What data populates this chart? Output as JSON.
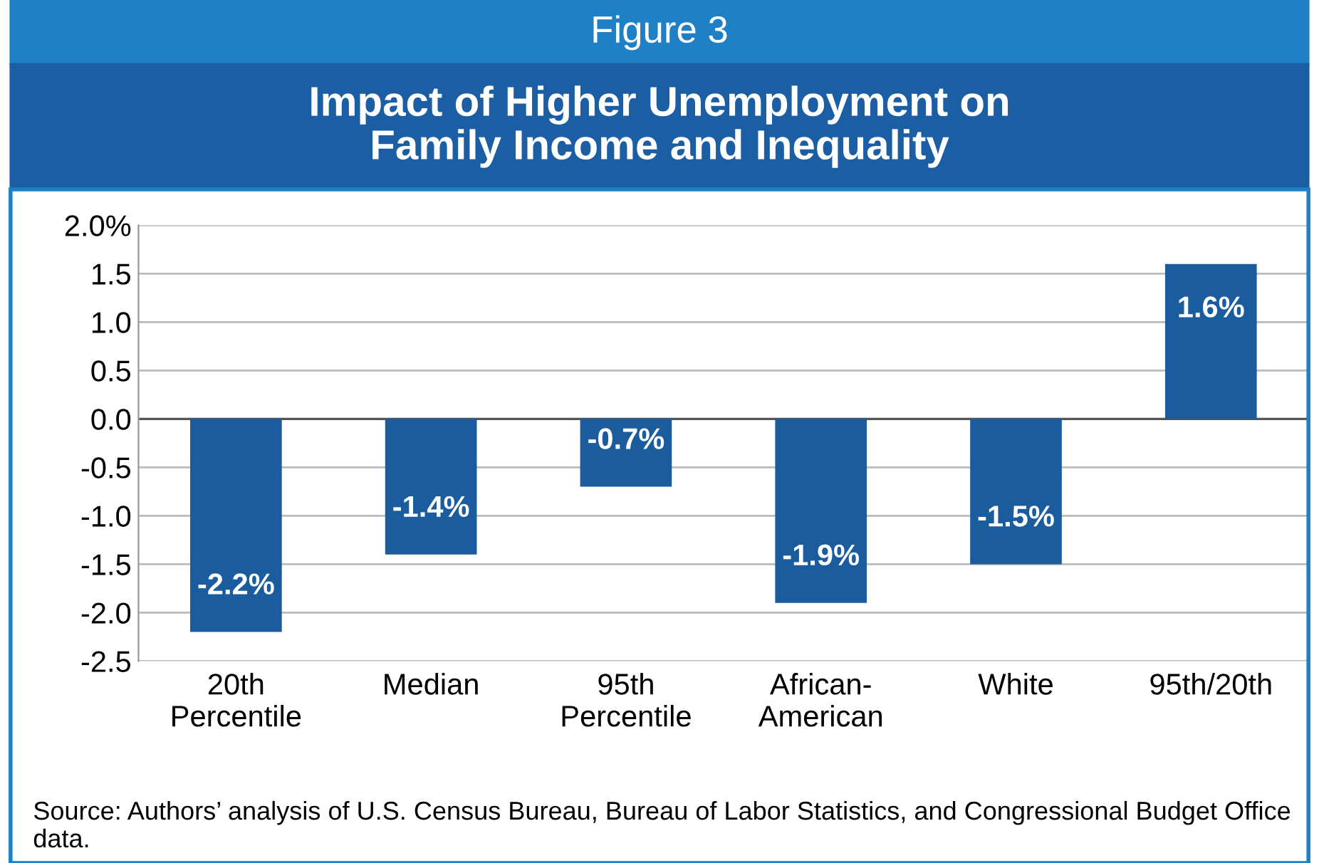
{
  "chart_data": {
    "type": "bar",
    "title": "Impact of Higher Unemployment on\nFamily Income and Inequality",
    "categories": [
      "20th\nPercentile",
      "Median",
      "95th\nPercentile",
      "African-\nAmerican",
      "White",
      "95th/20th"
    ],
    "values": [
      -2.2,
      -1.4,
      -0.7,
      -1.9,
      -1.5,
      1.6
    ],
    "value_labels": [
      "-2.2%",
      "-1.4%",
      "-0.7%",
      "-1.9%",
      "-1.5%",
      "1.6%"
    ],
    "color": "#1a5c9e",
    "ylim": [
      -2.5,
      2.0
    ],
    "yticks": [
      {
        "value": 2.0,
        "label": "2.0%"
      },
      {
        "value": 1.5,
        "label": "1.5"
      },
      {
        "value": 1.0,
        "label": "1.0"
      },
      {
        "value": 0.5,
        "label": "0.5"
      },
      {
        "value": 0.0,
        "label": "0.0"
      },
      {
        "value": -0.5,
        "label": "-0.5"
      },
      {
        "value": -1.0,
        "label": "-1.0"
      },
      {
        "value": -1.5,
        "label": "-1.5"
      },
      {
        "value": -2.0,
        "label": "-2.0"
      },
      {
        "value": -2.5,
        "label": "-2.5"
      }
    ],
    "grid": "y",
    "annotations": [
      "Figure 3",
      "Source: Authors’ analysis of U.S. Census Bureau, Bureau of Labor Statistics, and Congressional Budget Office data."
    ]
  }
}
